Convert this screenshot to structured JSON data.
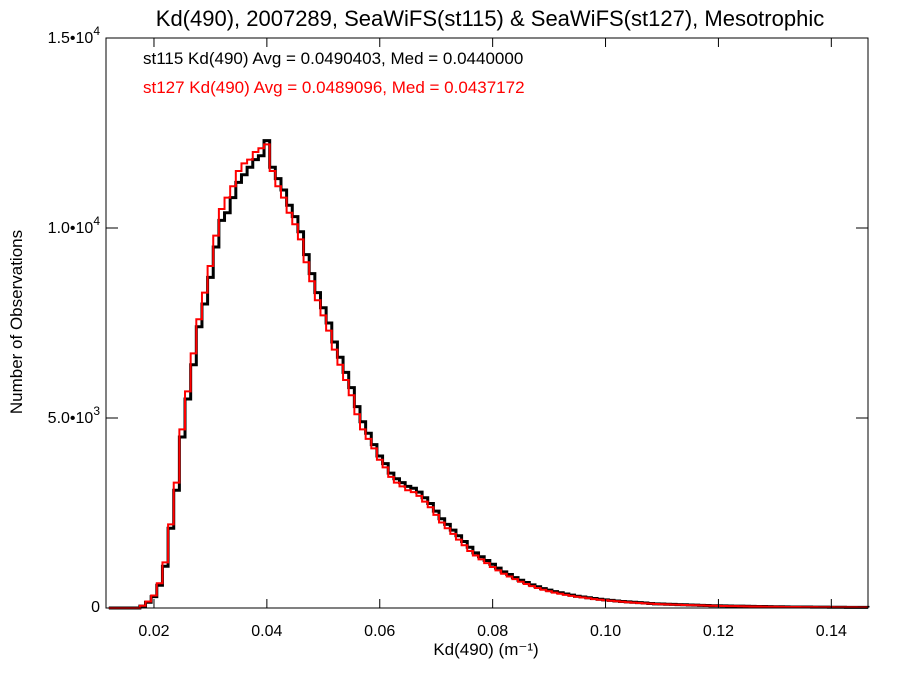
{
  "chart_data": {
    "type": "histogram",
    "title": "Kd(490), 2007289, SeaWiFS(st115) & SeaWiFS(st127), Mesotrophic",
    "xlabel": "Kd(490) (m⁻¹)",
    "ylabel": "Number of Observations",
    "xlim": [
      0.0115,
      0.1465
    ],
    "ylim": [
      0,
      15000
    ],
    "x_ticks": [
      0.02,
      0.04,
      0.06,
      0.08,
      0.1,
      0.12,
      0.14
    ],
    "x_tick_labels": [
      "0.02",
      "0.04",
      "0.06",
      "0.08",
      "0.10",
      "0.12",
      "0.14"
    ],
    "y_ticks": [
      0,
      5000,
      10000,
      15000
    ],
    "y_tick_labels": [
      {
        "text": "0",
        "exp": ""
      },
      {
        "text": "5.0•10",
        "exp": "3"
      },
      {
        "text": "1.0•10",
        "exp": "4"
      },
      {
        "text": "1.5•10",
        "exp": "4"
      }
    ],
    "series": [
      {
        "name": "st115",
        "color": "#000000",
        "legend_text": "st115 Kd(490) Avg = 0.0490403, Med = 0.0440000",
        "x": [
          0.012,
          0.015,
          0.0175,
          0.0185,
          0.0195,
          0.0205,
          0.0215,
          0.0225,
          0.0235,
          0.0245,
          0.0255,
          0.0265,
          0.0275,
          0.0285,
          0.0295,
          0.0305,
          0.0315,
          0.0325,
          0.0335,
          0.0345,
          0.0355,
          0.0365,
          0.0375,
          0.0385,
          0.0395,
          0.0405,
          0.0415,
          0.0425,
          0.0435,
          0.0445,
          0.0455,
          0.0465,
          0.0475,
          0.0485,
          0.0495,
          0.0505,
          0.0515,
          0.0525,
          0.0535,
          0.0545,
          0.0555,
          0.0565,
          0.0575,
          0.0585,
          0.0595,
          0.0605,
          0.0615,
          0.0625,
          0.0635,
          0.0645,
          0.0655,
          0.0665,
          0.0675,
          0.0685,
          0.0695,
          0.0705,
          0.0715,
          0.0725,
          0.0735,
          0.0745,
          0.0755,
          0.0765,
          0.0775,
          0.0785,
          0.0795,
          0.0805,
          0.0815,
          0.0825,
          0.0835,
          0.0845,
          0.0855,
          0.0865,
          0.0875,
          0.0885,
          0.0895,
          0.0905,
          0.0915,
          0.0925,
          0.0935,
          0.0945,
          0.0955,
          0.0965,
          0.0975,
          0.0985,
          0.0995,
          0.1005,
          0.1015,
          0.1025,
          0.1035,
          0.1045,
          0.1055,
          0.1065,
          0.1075,
          0.1085,
          0.1095,
          0.1105,
          0.1115,
          0.1125,
          0.1135,
          0.1145,
          0.1155,
          0.1165,
          0.1175,
          0.1185,
          0.1195,
          0.1205,
          0.1215,
          0.1225,
          0.1235,
          0.1245,
          0.1255,
          0.1265,
          0.1275,
          0.1285,
          0.1295,
          0.1305,
          0.1315,
          0.1325,
          0.1335,
          0.1345,
          0.1355,
          0.1365,
          0.1375,
          0.1385,
          0.1395,
          0.1405,
          0.1415,
          0.1425,
          0.1435,
          0.1445,
          0.1455,
          0.1465
        ],
        "y": [
          0,
          0,
          50,
          150,
          300,
          600,
          1100,
          2100,
          3100,
          4500,
          5500,
          6400,
          7400,
          8000,
          8700,
          9500,
          10200,
          10400,
          10800,
          11200,
          11400,
          11600,
          11800,
          11900,
          12300,
          11600,
          11300,
          11000,
          10600,
          10300,
          9900,
          9300,
          8800,
          8300,
          7900,
          7500,
          7000,
          6600,
          6200,
          5800,
          5300,
          4900,
          4600,
          4300,
          4000,
          3800,
          3550,
          3400,
          3300,
          3200,
          3150,
          3050,
          2900,
          2750,
          2550,
          2350,
          2200,
          2050,
          1900,
          1750,
          1600,
          1450,
          1350,
          1250,
          1150,
          1050,
          950,
          880,
          800,
          730,
          670,
          610,
          560,
          510,
          470,
          430,
          400,
          370,
          340,
          310,
          290,
          270,
          250,
          230,
          215,
          200,
          185,
          170,
          160,
          150,
          140,
          130,
          120,
          110,
          105,
          100,
          95,
          90,
          85,
          80,
          75,
          70,
          65,
          60,
          58,
          55,
          52,
          50,
          48,
          45,
          42,
          40,
          38,
          36,
          34,
          32,
          30,
          28,
          27,
          26,
          25,
          24,
          23,
          22,
          21,
          20,
          19,
          18,
          17,
          16,
          15,
          14
        ]
      },
      {
        "name": "st127",
        "color": "#ff0000",
        "legend_text": "st127 Kd(490) Avg = 0.0489096, Med = 0.0437172",
        "x": [
          0.012,
          0.015,
          0.0175,
          0.0185,
          0.0195,
          0.0205,
          0.0215,
          0.0225,
          0.0235,
          0.0245,
          0.0255,
          0.0265,
          0.0275,
          0.0285,
          0.0295,
          0.0305,
          0.0315,
          0.0325,
          0.0335,
          0.0345,
          0.0355,
          0.0365,
          0.0375,
          0.0385,
          0.0395,
          0.0405,
          0.0415,
          0.0425,
          0.0435,
          0.0445,
          0.0455,
          0.0465,
          0.0475,
          0.0485,
          0.0495,
          0.0505,
          0.0515,
          0.0525,
          0.0535,
          0.0545,
          0.0555,
          0.0565,
          0.0575,
          0.0585,
          0.0595,
          0.0605,
          0.0615,
          0.0625,
          0.0635,
          0.0645,
          0.0655,
          0.0665,
          0.0675,
          0.0685,
          0.0695,
          0.0705,
          0.0715,
          0.0725,
          0.0735,
          0.0745,
          0.0755,
          0.0765,
          0.0775,
          0.0785,
          0.0795,
          0.0805,
          0.0815,
          0.0825,
          0.0835,
          0.0845,
          0.0855,
          0.0865,
          0.0875,
          0.0885,
          0.0895,
          0.0905,
          0.0915,
          0.0925,
          0.0935,
          0.0945,
          0.0955,
          0.0965,
          0.0975,
          0.0985,
          0.0995,
          0.1005,
          0.1015,
          0.1025,
          0.1035,
          0.1045,
          0.1055,
          0.1065,
          0.1075,
          0.1085,
          0.1095,
          0.1105,
          0.1115,
          0.1125,
          0.1135,
          0.1145,
          0.1155,
          0.1165,
          0.1175,
          0.1185,
          0.1195,
          0.1205,
          0.1215,
          0.1225,
          0.1235,
          0.1245,
          0.1255,
          0.1265,
          0.1275,
          0.1285,
          0.1295,
          0.1305,
          0.1315,
          0.1325,
          0.1335,
          0.1345,
          0.1355,
          0.1365,
          0.1375,
          0.1385,
          0.1395,
          0.1405,
          0.1415,
          0.1425,
          0.1435,
          0.1445,
          0.1455,
          0.1465
        ],
        "y": [
          0,
          0,
          60,
          170,
          330,
          650,
          1200,
          2200,
          3300,
          4700,
          5700,
          6700,
          7600,
          8300,
          9000,
          9800,
          10500,
          10800,
          11100,
          11500,
          11700,
          11800,
          12000,
          12100,
          12200,
          11500,
          11100,
          10800,
          10400,
          10100,
          9700,
          9100,
          8600,
          8100,
          7700,
          7300,
          6800,
          6400,
          6000,
          5600,
          5100,
          4700,
          4450,
          4200,
          3900,
          3700,
          3450,
          3300,
          3200,
          3100,
          3050,
          2950,
          2800,
          2650,
          2450,
          2250,
          2100,
          1950,
          1800,
          1650,
          1500,
          1380,
          1280,
          1180,
          1080,
          990,
          900,
          830,
          760,
          690,
          630,
          575,
          525,
          480,
          440,
          405,
          375,
          345,
          320,
          295,
          275,
          255,
          235,
          218,
          203,
          190,
          176,
          163,
          152,
          142,
          132,
          122,
          114,
          106,
          100,
          95,
          90,
          85,
          80,
          76,
          72,
          68,
          63,
          58,
          55,
          52,
          50,
          48,
          46,
          43,
          40,
          38,
          36,
          34,
          32,
          30,
          28,
          26,
          25,
          24,
          23,
          22,
          21,
          20,
          19,
          18,
          17,
          16,
          15,
          14,
          13
        ]
      }
    ]
  }
}
